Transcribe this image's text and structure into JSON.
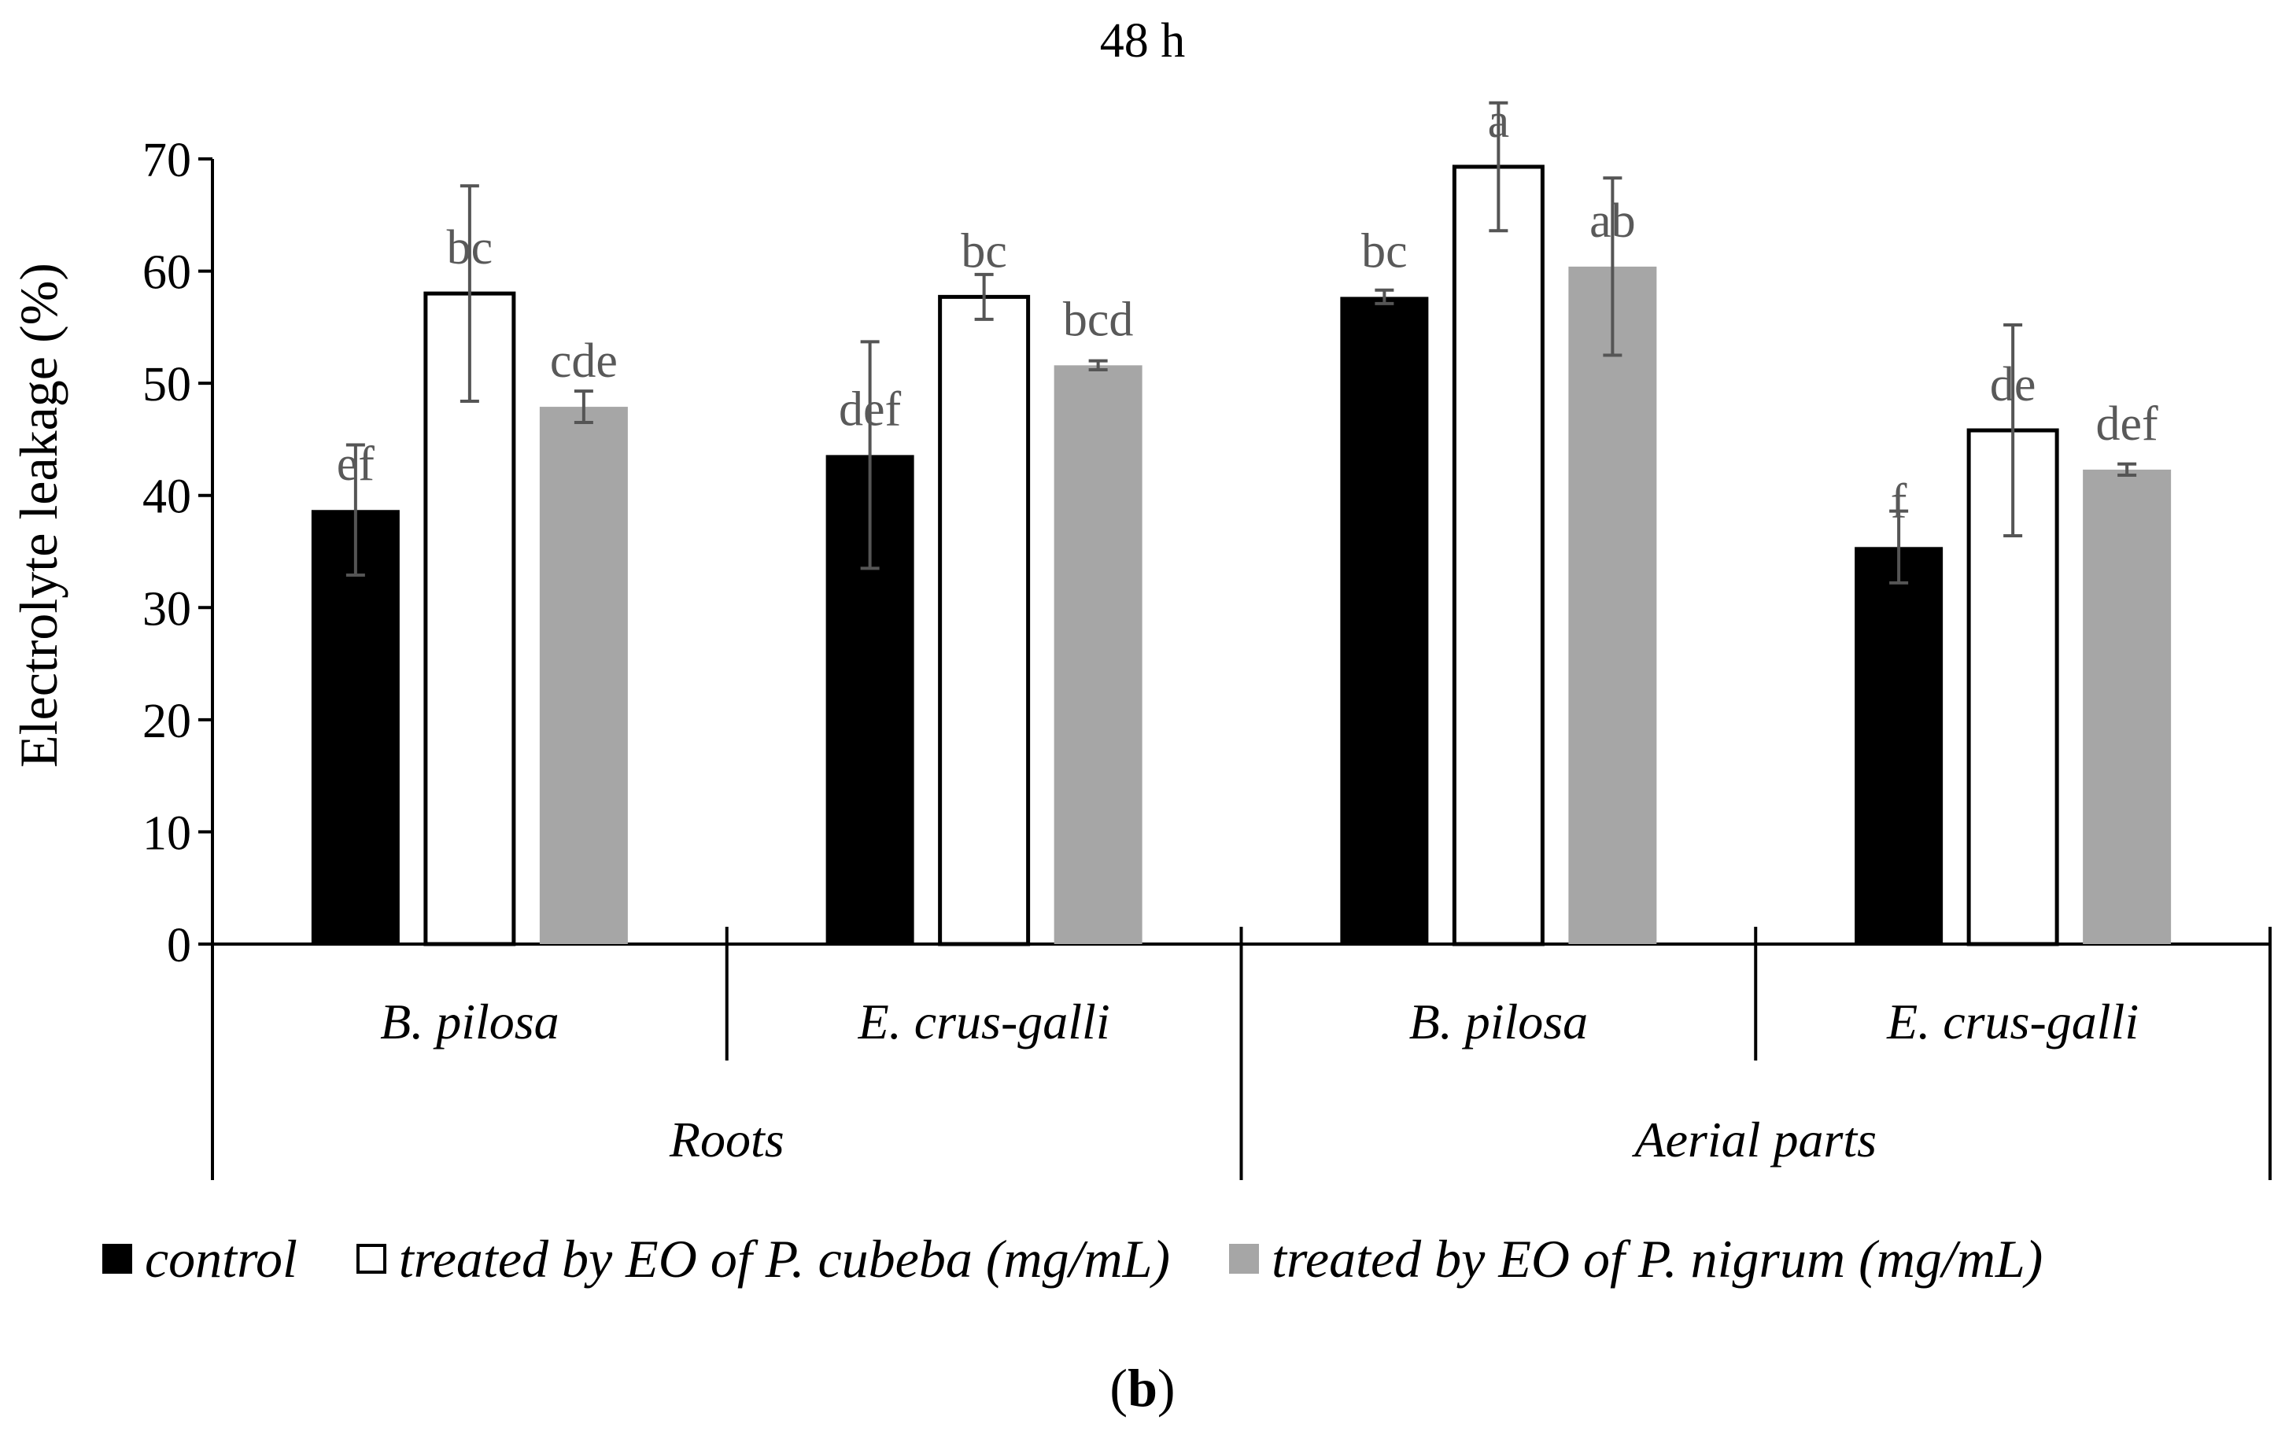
{
  "chart_data": {
    "type": "bar",
    "title": "48 h",
    "xlabel": "",
    "ylabel": "Electrolyte leakage (%)",
    "ylim": [
      0,
      70
    ],
    "yticks": [
      0,
      10,
      20,
      30,
      40,
      50,
      60,
      70
    ],
    "groups": [
      "Roots",
      "Aerial parts"
    ],
    "categories": [
      "B. pilosa",
      "E. crus-galli",
      "B. pilosa",
      "E. crus-galli"
    ],
    "category_group": [
      0,
      0,
      1,
      1
    ],
    "series": [
      {
        "name": "control",
        "color": "#000000",
        "values": [
          38.7,
          43.6,
          57.7,
          35.4
        ],
        "errors": [
          5.8,
          10.1,
          0.6,
          3.2
        ],
        "labels": [
          "ef",
          "def",
          "bc",
          "f"
        ]
      },
      {
        "name": "treated by EO of P. cubeba (mg/mL)",
        "color": "#ffffff",
        "values": [
          58.0,
          57.7,
          69.3,
          45.8
        ],
        "errors": [
          9.6,
          2.0,
          5.7,
          9.4
        ],
        "labels": [
          "bc",
          "bc",
          "a",
          "de"
        ]
      },
      {
        "name": "treated by EO of P. nigrum (mg/mL)",
        "color": "#a6a6a6",
        "values": [
          47.9,
          51.6,
          60.4,
          42.3
        ],
        "errors": [
          1.4,
          0.4,
          7.9,
          0.5
        ],
        "labels": [
          "cde",
          "bcd",
          "ab",
          "def"
        ]
      }
    ]
  },
  "panel_label": "b"
}
